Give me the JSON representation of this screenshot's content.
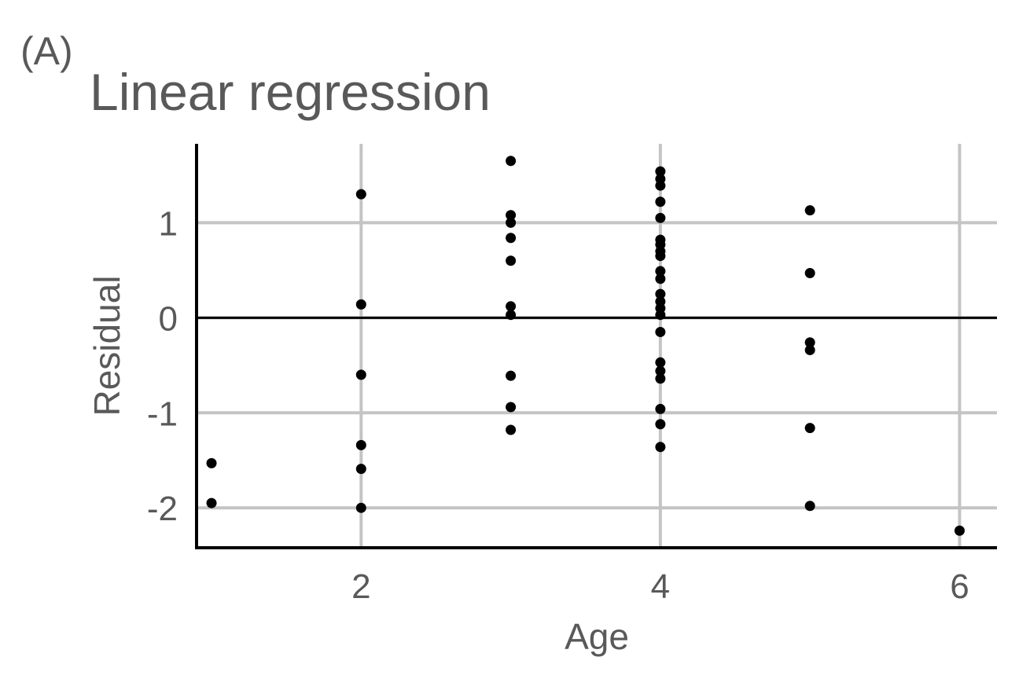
{
  "chart_data": {
    "type": "scatter",
    "panel_tag": "(A)",
    "title": "Linear regression",
    "xlabel": "Age",
    "ylabel": "Residual",
    "xlim": [
      0.9,
      6.25
    ],
    "ylim": [
      -2.42,
      1.83
    ],
    "xticks": [
      2,
      4,
      6
    ],
    "yticks": [
      -2,
      -1,
      0,
      1
    ],
    "grid": true,
    "reference_line_y": 0,
    "points": [
      {
        "x": 1,
        "y": -1.53
      },
      {
        "x": 1,
        "y": -1.95
      },
      {
        "x": 2,
        "y": 1.3
      },
      {
        "x": 2,
        "y": 0.14
      },
      {
        "x": 2,
        "y": -0.6
      },
      {
        "x": 2,
        "y": -1.34
      },
      {
        "x": 2,
        "y": -1.59
      },
      {
        "x": 2,
        "y": -2.0
      },
      {
        "x": 3,
        "y": 1.65
      },
      {
        "x": 3,
        "y": 1.08
      },
      {
        "x": 3,
        "y": 1.0
      },
      {
        "x": 3,
        "y": 0.84
      },
      {
        "x": 3,
        "y": 0.6
      },
      {
        "x": 3,
        "y": 0.12
      },
      {
        "x": 3,
        "y": 0.03
      },
      {
        "x": 3,
        "y": -0.61
      },
      {
        "x": 3,
        "y": -0.94
      },
      {
        "x": 3,
        "y": -1.18
      },
      {
        "x": 4,
        "y": 1.54
      },
      {
        "x": 4,
        "y": 1.46
      },
      {
        "x": 4,
        "y": 1.39
      },
      {
        "x": 4,
        "y": 1.22
      },
      {
        "x": 4,
        "y": 1.05
      },
      {
        "x": 4,
        "y": 0.82
      },
      {
        "x": 4,
        "y": 0.77
      },
      {
        "x": 4,
        "y": 0.7
      },
      {
        "x": 4,
        "y": 0.65
      },
      {
        "x": 4,
        "y": 0.49
      },
      {
        "x": 4,
        "y": 0.41
      },
      {
        "x": 4,
        "y": 0.25
      },
      {
        "x": 4,
        "y": 0.17
      },
      {
        "x": 4,
        "y": 0.1
      },
      {
        "x": 4,
        "y": 0.03
      },
      {
        "x": 4,
        "y": -0.15
      },
      {
        "x": 4,
        "y": -0.47
      },
      {
        "x": 4,
        "y": -0.56
      },
      {
        "x": 4,
        "y": -0.64
      },
      {
        "x": 4,
        "y": -0.96
      },
      {
        "x": 4,
        "y": -1.12
      },
      {
        "x": 4,
        "y": -1.36
      },
      {
        "x": 5,
        "y": 1.13
      },
      {
        "x": 5,
        "y": 0.47
      },
      {
        "x": 5,
        "y": -0.26
      },
      {
        "x": 5,
        "y": -0.34
      },
      {
        "x": 5,
        "y": -1.16
      },
      {
        "x": 5,
        "y": -1.98
      },
      {
        "x": 6,
        "y": -2.24
      }
    ]
  }
}
